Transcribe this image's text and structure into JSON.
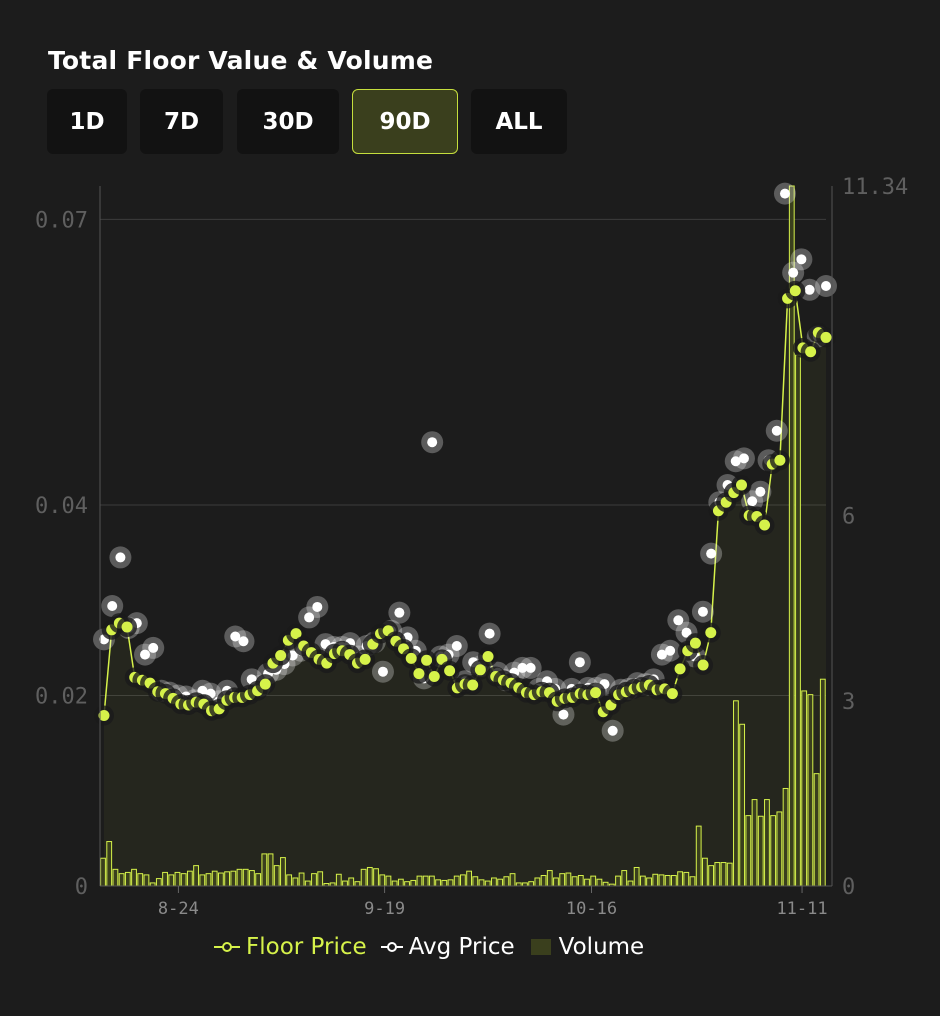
{
  "title": "Total Floor Value & Volume",
  "range_tabs": [
    {
      "label": "1D",
      "active": false
    },
    {
      "label": "7D",
      "active": false
    },
    {
      "label": "30D",
      "active": false
    },
    {
      "label": "90D",
      "active": true
    },
    {
      "label": "ALL",
      "active": false
    }
  ],
  "colors": {
    "accent": "#d6f24a",
    "background": "#1c1c1c",
    "avg_dot": "#ffffff",
    "volume_fill": "#3a3f1d"
  },
  "chart_data": {
    "type": "line",
    "x_tick_labels": [
      "8-24",
      "9-19",
      "10-16",
      "11-11"
    ],
    "y_left_ticks": [
      "0",
      "0.02",
      "0.04",
      "0.07"
    ],
    "y_left_ticks_values": [
      0,
      0.02,
      0.04,
      0.07
    ],
    "y_right_ticks": [
      "0",
      "3",
      "6",
      "11.34"
    ],
    "y_right_ticks_values": [
      0,
      3,
      6,
      11.34
    ],
    "ylim_left": [
      0,
      0.0735
    ],
    "ylim_right": [
      0,
      11.34
    ],
    "grid": true,
    "legend_position": "bottom",
    "series": [
      {
        "name": "Floor Price",
        "axis": "left",
        "values": [
          0.0179,
          0.0269,
          0.0276,
          0.0272,
          0.0219,
          0.0216,
          0.0213,
          0.0204,
          0.0202,
          0.0197,
          0.0191,
          0.019,
          0.0193,
          0.0191,
          0.0184,
          0.0186,
          0.0195,
          0.0198,
          0.0198,
          0.0201,
          0.0205,
          0.0212,
          0.0234,
          0.0242,
          0.0258,
          0.0265,
          0.0252,
          0.0245,
          0.0238,
          0.0234,
          0.0244,
          0.0247,
          0.0243,
          0.0234,
          0.0238,
          0.0254,
          0.0265,
          0.0268,
          0.0257,
          0.0249,
          0.0239,
          0.0223,
          0.0237,
          0.022,
          0.0238,
          0.0226,
          0.0208,
          0.0212,
          0.0211,
          0.0227,
          0.0241,
          0.022,
          0.0216,
          0.0213,
          0.0208,
          0.0203,
          0.0201,
          0.0204,
          0.0203,
          0.0194,
          0.0197,
          0.0198,
          0.0202,
          0.0201,
          0.0203,
          0.0183,
          0.019,
          0.0201,
          0.0204,
          0.0207,
          0.0209,
          0.0211,
          0.0206,
          0.0207,
          0.0202,
          0.0228,
          0.0247,
          0.0255,
          0.0232,
          0.0266,
          0.0394,
          0.0403,
          0.0413,
          0.0421,
          0.0389,
          0.0388,
          0.0379,
          0.0443,
          0.0447,
          0.0617,
          0.0625,
          0.0565,
          0.0561,
          0.0581,
          0.0576
        ]
      },
      {
        "name": "Avg Price",
        "axis": "left",
        "values": [
          0.0259,
          0.0294,
          0.0345,
          0.0271,
          0.0276,
          0.0243,
          0.025,
          0.0205,
          0.0203,
          0.02,
          0.0199,
          0.0195,
          0.0205,
          0.0202,
          0.0194,
          0.0205,
          0.0262,
          0.0257,
          0.0217,
          0.021,
          0.0223,
          0.0227,
          0.0233,
          0.0242,
          0.0247,
          0.0282,
          0.0293,
          0.0254,
          0.0251,
          0.0251,
          0.0255,
          0.0241,
          0.0252,
          0.0256,
          0.0225,
          0.0268,
          0.0287,
          0.0261,
          0.0247,
          0.0218,
          0.0466,
          0.0241,
          0.0243,
          0.0252,
          0.0215,
          0.0235,
          0.0231,
          0.0265,
          0.0224,
          0.0216,
          0.0224,
          0.0229,
          0.0229,
          0.0207,
          0.0215,
          0.0207,
          0.018,
          0.0207,
          0.0235,
          0.0208,
          0.0208,
          0.0212,
          0.0163,
          0.0206,
          0.0207,
          0.0213,
          0.0212,
          0.0217,
          0.0243,
          0.0247,
          0.0279,
          0.0266,
          0.0241,
          0.0288,
          0.0349,
          0.0403,
          0.0421,
          0.0446,
          0.0449,
          0.0404,
          0.0414,
          0.0447,
          0.0478,
          0.0727,
          0.0644,
          0.0658,
          0.0626,
          0.0577,
          0.063
        ]
      },
      {
        "name": "Volume",
        "axis": "right",
        "values": [
          0.45,
          0.72,
          0.27,
          0.2,
          0.22,
          0.27,
          0.2,
          0.18,
          0.05,
          0.12,
          0.22,
          0.18,
          0.22,
          0.2,
          0.24,
          0.33,
          0.18,
          0.2,
          0.24,
          0.21,
          0.23,
          0.24,
          0.27,
          0.27,
          0.25,
          0.2,
          0.52,
          0.52,
          0.33,
          0.46,
          0.18,
          0.13,
          0.21,
          0.08,
          0.2,
          0.23,
          0.04,
          0.05,
          0.19,
          0.08,
          0.13,
          0.07,
          0.27,
          0.3,
          0.28,
          0.18,
          0.16,
          0.08,
          0.11,
          0.07,
          0.09,
          0.16,
          0.16,
          0.16,
          0.1,
          0.09,
          0.1,
          0.16,
          0.18,
          0.24,
          0.15,
          0.1,
          0.08,
          0.13,
          0.11,
          0.15,
          0.2,
          0.05,
          0.05,
          0.07,
          0.13,
          0.17,
          0.25,
          0.13,
          0.2,
          0.21,
          0.15,
          0.17,
          0.11,
          0.16,
          0.11,
          0.06,
          0.03,
          0.16,
          0.25,
          0.08,
          0.3,
          0.16,
          0.13,
          0.19,
          0.18,
          0.17,
          0.17,
          0.23,
          0.22,
          0.15,
          0.97,
          0.45,
          0.33,
          0.38,
          0.38,
          0.37,
          3.0,
          2.62,
          1.14,
          1.4,
          1.13,
          1.4,
          1.14,
          1.2,
          1.58,
          11.34,
          8.6,
          3.16,
          3.1,
          1.82,
          3.35
        ]
      }
    ]
  },
  "legend": {
    "floor_label": "Floor Price",
    "avg_label": "Avg Price",
    "volume_label": "Volume"
  }
}
